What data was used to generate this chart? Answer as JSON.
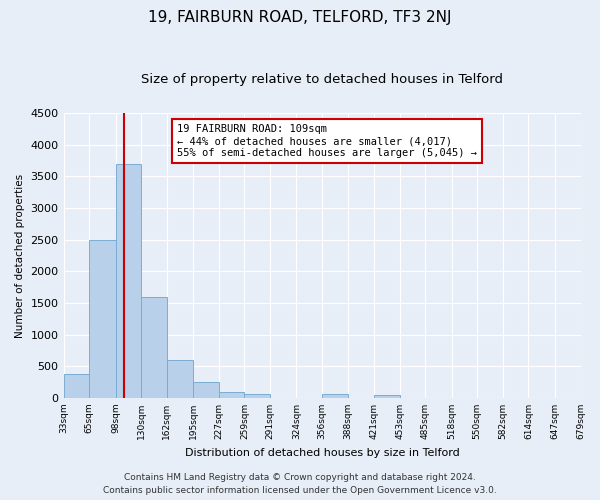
{
  "title": "19, FAIRBURN ROAD, TELFORD, TF3 2NJ",
  "subtitle": "Size of property relative to detached houses in Telford",
  "xlabel": "Distribution of detached houses by size in Telford",
  "ylabel": "Number of detached properties",
  "bins": [
    33,
    65,
    98,
    130,
    162,
    195,
    227,
    259,
    291,
    324,
    356,
    388,
    421,
    453,
    485,
    518,
    550,
    582,
    614,
    647,
    679
  ],
  "values": [
    380,
    2500,
    3700,
    1600,
    600,
    250,
    100,
    60,
    0,
    0,
    60,
    0,
    40,
    0,
    0,
    0,
    0,
    0,
    0,
    0
  ],
  "bar_color": "#b8d0ea",
  "bar_edge_color": "#7aadd4",
  "property_line_x": 109,
  "property_line_color": "#cc0000",
  "annotation_text": "19 FAIRBURN ROAD: 109sqm\n← 44% of detached houses are smaller (4,017)\n55% of semi-detached houses are larger (5,045) →",
  "annotation_box_color": "#ffffff",
  "annotation_box_edge": "#cc0000",
  "ylim": [
    0,
    4500
  ],
  "yticks": [
    0,
    500,
    1000,
    1500,
    2000,
    2500,
    3000,
    3500,
    4000,
    4500
  ],
  "tick_labels": [
    "33sqm",
    "65sqm",
    "98sqm",
    "130sqm",
    "162sqm",
    "195sqm",
    "227sqm",
    "259sqm",
    "291sqm",
    "324sqm",
    "356sqm",
    "388sqm",
    "421sqm",
    "453sqm",
    "485sqm",
    "518sqm",
    "550sqm",
    "582sqm",
    "614sqm",
    "647sqm",
    "679sqm"
  ],
  "footer_line1": "Contains HM Land Registry data © Crown copyright and database right 2024.",
  "footer_line2": "Contains public sector information licensed under the Open Government Licence v3.0.",
  "background_color": "#e8eef7",
  "plot_bg_color": "#e8eef7",
  "grid_color": "#ffffff",
  "title_fontsize": 11,
  "subtitle_fontsize": 9.5,
  "footer_fontsize": 6.5
}
